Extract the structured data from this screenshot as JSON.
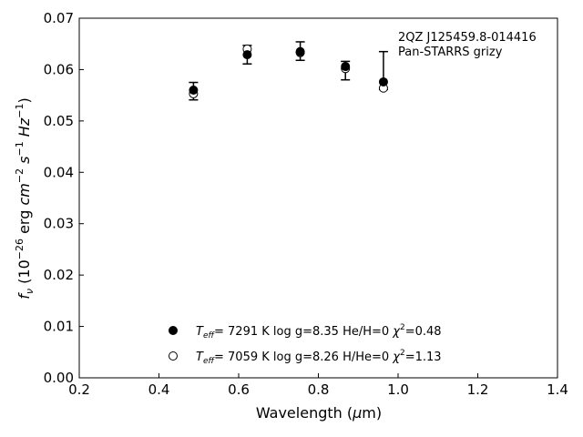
{
  "chart_data": {
    "type": "scatter",
    "xlabel_parts": {
      "main": "Wavelength (",
      "mu": "μ",
      "unit": "m)"
    },
    "ylabel_parts": {
      "f": "f",
      "nu": "ν",
      "open": " (10",
      "e1": "−26",
      "erg": " erg ",
      "cm": "cm",
      "e2": "−2",
      "s": " s",
      "e3": "−1",
      "hz": " Hz",
      "e4": "−1",
      "close": ")"
    },
    "xlim": [
      0.2,
      1.4
    ],
    "ylim": [
      0.0,
      0.07
    ],
    "xticks": [
      "0.2",
      "0.4",
      "0.6",
      "0.8",
      "1.0",
      "1.2",
      "1.4"
    ],
    "yticks": [
      "0.00",
      "0.01",
      "0.02",
      "0.03",
      "0.04",
      "0.05",
      "0.06",
      "0.07"
    ],
    "annotation": [
      "2QZ J125459.8-014416",
      "Pan-STARRS grizy"
    ],
    "observed": {
      "x": [
        0.4866,
        0.6215,
        0.7545,
        0.8679,
        0.9633
      ],
      "y": [
        0.0558,
        0.0629,
        0.0636,
        0.0598,
        0.06
      ],
      "yerr_low": [
        0.0017,
        0.0018,
        0.0018,
        0.0018,
        0.0039
      ],
      "yerr_high": [
        0.0017,
        0.0018,
        0.0018,
        0.0018,
        0.0035
      ]
    },
    "series": [
      {
        "marker": "filled",
        "x": [
          0.4866,
          0.6215,
          0.7545,
          0.8679,
          0.9633
        ],
        "y": [
          0.056,
          0.0629,
          0.0635,
          0.0606,
          0.0576
        ],
        "legend": {
          "teff": "T",
          "teff_sub": "eff",
          "eq": "=  7291 K  log g=8.35  He/H=0  ",
          "chi": "χ",
          "chi_sup": "2",
          "chi_val": "=0.48"
        }
      },
      {
        "marker": "open",
        "x": [
          0.4866,
          0.6215,
          0.7545,
          0.8679,
          0.9633
        ],
        "y": [
          0.0553,
          0.064,
          0.0633,
          0.0602,
          0.0564
        ],
        "legend": {
          "teff": "T",
          "teff_sub": "eff",
          "eq": "=  7059 K  log g=8.26  H/He=0  ",
          "chi": "χ",
          "chi_sup": "2",
          "chi_val": "=1.13"
        }
      }
    ]
  }
}
